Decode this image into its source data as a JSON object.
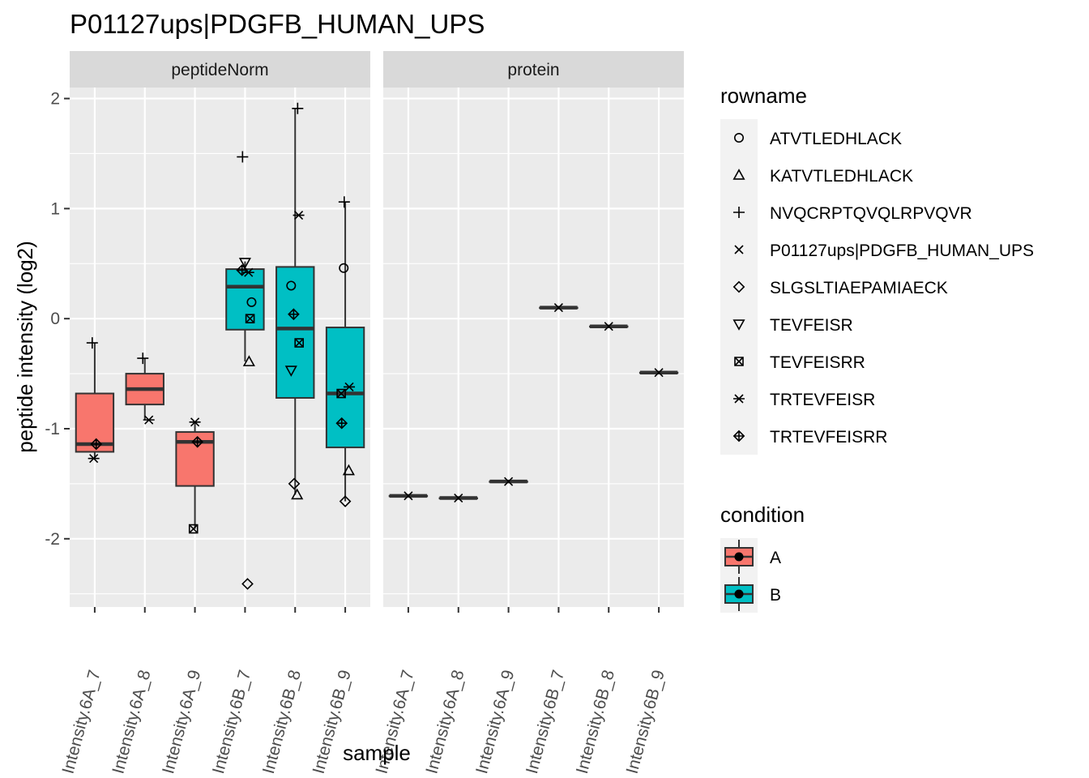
{
  "chart_data": {
    "type": "box",
    "title": "P01127ups|PDGFB_HUMAN_UPS",
    "xlabel": "sample",
    "ylabel": "peptide intensity (log2)",
    "ylim": [
      -2.62,
      2.1
    ],
    "yticks": [
      2,
      1,
      0,
      -1,
      -2
    ],
    "categories": [
      "Intensity.6A_7",
      "Intensity.6A_8",
      "Intensity.6A_9",
      "Intensity.6B_7",
      "Intensity.6B_8",
      "Intensity.6B_9"
    ],
    "grid": true,
    "legend_position": "right",
    "condition_colors": {
      "A": "#F8766D",
      "B": "#00BFC4"
    },
    "panels": [
      {
        "name": "peptideNorm",
        "boxes": [
          {
            "category": "Intensity.6A_7",
            "condition": "A",
            "whisker_low": -1.27,
            "q1": -1.21,
            "median": -1.14,
            "q3": -0.68,
            "whisker_high": -0.22
          },
          {
            "category": "Intensity.6A_8",
            "condition": "A",
            "whisker_low": -0.92,
            "q1": -0.78,
            "median": -0.64,
            "q3": -0.5,
            "whisker_high": -0.36
          },
          {
            "category": "Intensity.6A_9",
            "condition": "A",
            "whisker_low": -1.91,
            "q1": -1.52,
            "median": -1.12,
            "q3": -1.03,
            "whisker_high": -0.94
          },
          {
            "category": "Intensity.6B_7",
            "condition": "B",
            "whisker_low": -0.39,
            "q1": -0.1,
            "median": 0.29,
            "q3": 0.45,
            "whisker_high": 0.52
          },
          {
            "category": "Intensity.6B_8",
            "condition": "B",
            "whisker_low": -1.6,
            "q1": -0.72,
            "median": -0.09,
            "q3": 0.47,
            "whisker_high": 1.91
          },
          {
            "category": "Intensity.6B_9",
            "condition": "B",
            "whisker_low": -1.66,
            "q1": -1.17,
            "median": -0.68,
            "q3": -0.08,
            "whisker_high": 1.06
          }
        ],
        "points": [
          {
            "category": "Intensity.6A_7",
            "peptide": "NVQCRPTQVQLRPVQVR",
            "y": -0.22,
            "dx": -0.05
          },
          {
            "category": "Intensity.6A_7",
            "peptide": "TRTEVFEISR",
            "y": -1.27,
            "dx": -0.02
          },
          {
            "category": "Intensity.6A_7",
            "peptide": "TRTEVFEISRR",
            "y": -1.14,
            "dx": 0.03
          },
          {
            "category": "Intensity.6A_8",
            "peptide": "NVQCRPTQVQLRPVQVR",
            "y": -0.36,
            "dx": -0.04
          },
          {
            "category": "Intensity.6A_8",
            "peptide": "TRTEVFEISR",
            "y": -0.92,
            "dx": 0.08
          },
          {
            "category": "Intensity.6A_9",
            "peptide": "TRTEVFEISR",
            "y": -0.94,
            "dx": 0.0
          },
          {
            "category": "Intensity.6A_9",
            "peptide": "TRTEVFEISRR",
            "y": -1.12,
            "dx": 0.05
          },
          {
            "category": "Intensity.6A_9",
            "peptide": "TEVFEISRR",
            "y": -1.91,
            "dx": -0.03
          },
          {
            "category": "Intensity.6B_7",
            "peptide": "NVQCRPTQVQLRPVQVR",
            "y": 1.47,
            "dx": -0.05
          },
          {
            "category": "Intensity.6B_7",
            "peptide": "TEVFEISR",
            "y": 0.51,
            "dx": 0.0
          },
          {
            "category": "Intensity.6B_7",
            "peptide": "TRTEVFEISRR",
            "y": 0.44,
            "dx": -0.06
          },
          {
            "category": "Intensity.6B_7",
            "peptide": "TRTEVFEISR",
            "y": 0.42,
            "dx": 0.07
          },
          {
            "category": "Intensity.6B_7",
            "peptide": "ATVTLEDHLACK",
            "y": 0.15,
            "dx": 0.13
          },
          {
            "category": "Intensity.6B_7",
            "peptide": "TEVFEISRR",
            "y": 0.0,
            "dx": 0.1
          },
          {
            "category": "Intensity.6B_7",
            "peptide": "KATVTLEDHLACK",
            "y": -0.39,
            "dx": 0.08
          },
          {
            "category": "Intensity.6B_7",
            "peptide": "SLGSLTIAEPAMIAECK",
            "y": -2.41,
            "dx": 0.05
          },
          {
            "category": "Intensity.6B_8",
            "peptide": "NVQCRPTQVQLRPVQVR",
            "y": 1.91,
            "dx": 0.05
          },
          {
            "category": "Intensity.6B_8",
            "peptide": "TRTEVFEISR",
            "y": 0.94,
            "dx": 0.07
          },
          {
            "category": "Intensity.6B_8",
            "peptide": "ATVTLEDHLACK",
            "y": 0.3,
            "dx": -0.08
          },
          {
            "category": "Intensity.6B_8",
            "peptide": "TRTEVFEISRR",
            "y": 0.04,
            "dx": -0.03
          },
          {
            "category": "Intensity.6B_8",
            "peptide": "TEVFEISRR",
            "y": -0.22,
            "dx": 0.08
          },
          {
            "category": "Intensity.6B_8",
            "peptide": "TEVFEISR",
            "y": -0.47,
            "dx": -0.08
          },
          {
            "category": "Intensity.6B_8",
            "peptide": "SLGSLTIAEPAMIAECK",
            "y": -1.5,
            "dx": -0.02
          },
          {
            "category": "Intensity.6B_8",
            "peptide": "KATVTLEDHLACK",
            "y": -1.6,
            "dx": 0.04
          },
          {
            "category": "Intensity.6B_9",
            "peptide": "NVQCRPTQVQLRPVQVR",
            "y": 1.06,
            "dx": -0.02
          },
          {
            "category": "Intensity.6B_9",
            "peptide": "ATVTLEDHLACK",
            "y": 0.46,
            "dx": -0.03
          },
          {
            "category": "Intensity.6B_9",
            "peptide": "TRTEVFEISR",
            "y": -0.62,
            "dx": 0.08
          },
          {
            "category": "Intensity.6B_9",
            "peptide": "TEVFEISRR",
            "y": -0.68,
            "dx": -0.08
          },
          {
            "category": "Intensity.6B_9",
            "peptide": "TRTEVFEISRR",
            "y": -0.95,
            "dx": -0.07
          },
          {
            "category": "Intensity.6B_9",
            "peptide": "KATVTLEDHLACK",
            "y": -1.38,
            "dx": 0.07
          },
          {
            "category": "Intensity.6B_9",
            "peptide": "SLGSLTIAEPAMIAECK",
            "y": -1.66,
            "dx": 0.0
          }
        ]
      },
      {
        "name": "protein",
        "boxes": [
          {
            "category": "Intensity.6A_7",
            "condition": "A",
            "whisker_low": -1.61,
            "q1": -1.61,
            "median": -1.61,
            "q3": -1.61,
            "whisker_high": -1.61
          },
          {
            "category": "Intensity.6A_8",
            "condition": "A",
            "whisker_low": -1.63,
            "q1": -1.63,
            "median": -1.63,
            "q3": -1.63,
            "whisker_high": -1.63
          },
          {
            "category": "Intensity.6A_9",
            "condition": "A",
            "whisker_low": -1.48,
            "q1": -1.48,
            "median": -1.48,
            "q3": -1.48,
            "whisker_high": -1.48
          },
          {
            "category": "Intensity.6B_7",
            "condition": "B",
            "whisker_low": 0.1,
            "q1": 0.1,
            "median": 0.1,
            "q3": 0.1,
            "whisker_high": 0.1
          },
          {
            "category": "Intensity.6B_8",
            "condition": "B",
            "whisker_low": -0.07,
            "q1": -0.07,
            "median": -0.07,
            "q3": -0.07,
            "whisker_high": -0.07
          },
          {
            "category": "Intensity.6B_9",
            "condition": "B",
            "whisker_low": -0.49,
            "q1": -0.49,
            "median": -0.49,
            "q3": -0.49,
            "whisker_high": -0.49
          }
        ],
        "points": [
          {
            "category": "Intensity.6A_7",
            "peptide": "P01127ups|PDGFB_HUMAN_UPS",
            "y": -1.61,
            "dx": 0.0
          },
          {
            "category": "Intensity.6A_8",
            "peptide": "P01127ups|PDGFB_HUMAN_UPS",
            "y": -1.63,
            "dx": 0.0
          },
          {
            "category": "Intensity.6A_9",
            "peptide": "P01127ups|PDGFB_HUMAN_UPS",
            "y": -1.48,
            "dx": 0.0
          },
          {
            "category": "Intensity.6B_7",
            "peptide": "P01127ups|PDGFB_HUMAN_UPS",
            "y": 0.1,
            "dx": 0.0
          },
          {
            "category": "Intensity.6B_8",
            "peptide": "P01127ups|PDGFB_HUMAN_UPS",
            "y": -0.07,
            "dx": 0.0
          },
          {
            "category": "Intensity.6B_9",
            "peptide": "P01127ups|PDGFB_HUMAN_UPS",
            "y": -0.49,
            "dx": 0.0
          }
        ]
      }
    ],
    "legends": {
      "rowname": {
        "title": "rowname",
        "entries": [
          {
            "label": "ATVTLEDHLACK",
            "shape": "circle"
          },
          {
            "label": "KATVTLEDHLACK",
            "shape": "triangle"
          },
          {
            "label": "NVQCRPTQVQLRPVQVR",
            "shape": "plus"
          },
          {
            "label": "P01127ups|PDGFB_HUMAN_UPS",
            "shape": "cross"
          },
          {
            "label": "SLGSLTIAEPAMIAECK",
            "shape": "diamond"
          },
          {
            "label": "TEVFEISR",
            "shape": "triangle-down"
          },
          {
            "label": "TEVFEISRR",
            "shape": "square-cross"
          },
          {
            "label": "TRTEVFEISR",
            "shape": "asterisk"
          },
          {
            "label": "TRTEVFEISRR",
            "shape": "diamond-plus"
          }
        ]
      },
      "condition": {
        "title": "condition",
        "entries": [
          {
            "label": "A",
            "color": "#F8766D"
          },
          {
            "label": "B",
            "color": "#00BFC4"
          }
        ]
      }
    }
  }
}
